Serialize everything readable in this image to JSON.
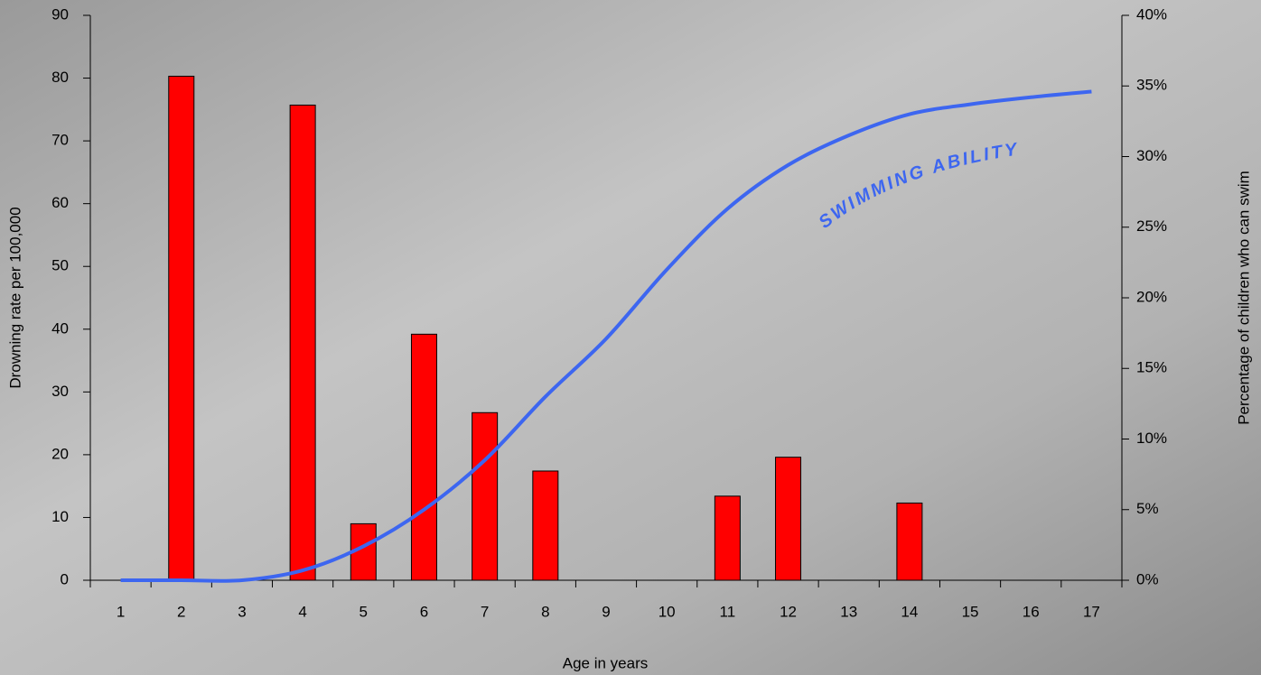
{
  "chart_data": {
    "type": "bar",
    "x_label": "Age in years",
    "y_label": "Drowning rate per 100,000",
    "y2_label": "Percentage of children who can swim",
    "annotation": "SWIMMING ABILITY",
    "categories": [
      "1",
      "2",
      "3",
      "4",
      "5",
      "6",
      "7",
      "8",
      "9",
      "10",
      "11",
      "12",
      "13",
      "14",
      "15",
      "16",
      "17"
    ],
    "series": [
      {
        "name": "Drowning rate",
        "type": "bar",
        "color": "#ff0000",
        "values": [
          null,
          80.3,
          null,
          75.7,
          9,
          39.2,
          26.7,
          17.4,
          null,
          null,
          13.4,
          19.6,
          null,
          12.3,
          null,
          null,
          null
        ]
      },
      {
        "name": "Swimming ability",
        "type": "line",
        "axis": "y2",
        "color": "#3d66f0",
        "values": [
          0,
          0,
          0,
          0.7,
          2.4,
          5,
          8.5,
          13,
          17.1,
          22,
          26.3,
          29.4,
          31.5,
          33,
          33.7,
          34.2,
          34.6
        ]
      }
    ],
    "ylim": [
      0,
      90
    ],
    "yticks": [
      0,
      10,
      20,
      30,
      40,
      50,
      60,
      70,
      80,
      90
    ],
    "y2lim": [
      0,
      40
    ],
    "y2ticks": [
      {
        "value": 0,
        "label": "0%"
      },
      {
        "value": 5,
        "label": "5%"
      },
      {
        "value": 10,
        "label": "10%"
      },
      {
        "value": 15,
        "label": "15%"
      },
      {
        "value": 20,
        "label": "20%"
      },
      {
        "value": 25,
        "label": "25%"
      },
      {
        "value": 30,
        "label": "30%"
      },
      {
        "value": 35,
        "label": "35%"
      },
      {
        "value": 40,
        "label": "40%"
      }
    ]
  }
}
